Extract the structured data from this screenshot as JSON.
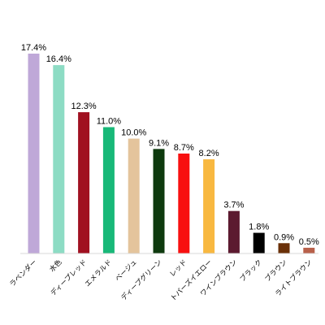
{
  "chart_data": {
    "type": "bar",
    "categories": [
      "ラベンダー",
      "水色",
      "ディープレッド",
      "エメラルド",
      "ベージュ",
      "ディープグリーン",
      "レッド",
      "トパーズイエロー",
      "ワインブラウン",
      "ブラック",
      "ブラウン",
      "ライトブラウン"
    ],
    "values": [
      17.4,
      16.4,
      12.3,
      11.0,
      10.0,
      9.1,
      8.7,
      8.2,
      3.7,
      1.8,
      0.9,
      0.5
    ],
    "value_labels": [
      "17.4%",
      "16.4%",
      "12.3%",
      "11.0%",
      "10.0%",
      "9.1%",
      "8.7%",
      "8.2%",
      "3.7%",
      "1.8%",
      "0.9%",
      "0.5%"
    ],
    "colors": [
      "#bfa8d8",
      "#8ddcc4",
      "#a01020",
      "#18b878",
      "#e4c49c",
      "#0e3a0e",
      "#f81010",
      "#f8b840",
      "#5c1a30",
      "#000000",
      "#6a3008",
      "#b8604a"
    ],
    "title": "",
    "xlabel": "",
    "ylabel": "",
    "ylim": [
      0,
      17.4
    ],
    "grid": false,
    "legend": "none"
  }
}
